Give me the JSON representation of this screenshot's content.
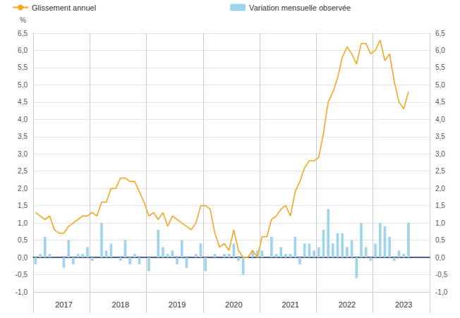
{
  "chart_data": {
    "type": "bar",
    "y_label": "%",
    "legend": "top",
    "grid": true,
    "categories": [
      null,
      null,
      null,
      null,
      null,
      null,
      "2017",
      null,
      null,
      null,
      null,
      null,
      null,
      null,
      null,
      null,
      null,
      null,
      "2018",
      null,
      null,
      null,
      null,
      null,
      null,
      null,
      null,
      null,
      null,
      null,
      "2019",
      null,
      null,
      null,
      null,
      null,
      null,
      null,
      null,
      null,
      null,
      null,
      "2020",
      null,
      null,
      null,
      null,
      null,
      null,
      null,
      null,
      null,
      null,
      null,
      "2021",
      null,
      null,
      null,
      null,
      null,
      null,
      null,
      null,
      null,
      null,
      null,
      "2022",
      null,
      null,
      null,
      null,
      null,
      null,
      null,
      null,
      null,
      null,
      null,
      "2023",
      null,
      null,
      null,
      null,
      null
    ],
    "series": [
      {
        "name": "Glissement annuel",
        "type": "line",
        "color": "#f5a623",
        "values": [
          1.3,
          1.2,
          1.1,
          1.2,
          0.8,
          0.7,
          0.7,
          0.9,
          1.0,
          1.1,
          1.2,
          1.2,
          1.3,
          1.2,
          1.6,
          1.6,
          2.0,
          2.0,
          2.3,
          2.3,
          2.2,
          2.2,
          1.9,
          1.6,
          1.2,
          1.3,
          1.1,
          1.3,
          0.9,
          1.2,
          1.1,
          1.0,
          0.9,
          0.8,
          1.0,
          1.5,
          1.5,
          1.4,
          0.7,
          0.3,
          0.4,
          0.2,
          0.8,
          0.2,
          0,
          0,
          0.2,
          0,
          0.6,
          0.6,
          1.1,
          1.2,
          1.4,
          1.5,
          1.2,
          1.9,
          2.2,
          2.6,
          2.8,
          2.8,
          2.9,
          3.6,
          4.5,
          4.8,
          5.2,
          5.8,
          6.1,
          5.9,
          5.6,
          6.2,
          6.2,
          5.9,
          6.0,
          6.3,
          5.7,
          5.9,
          5.1,
          4.5,
          4.3,
          4.8,
          null,
          null,
          null,
          null
        ]
      },
      {
        "name": "Variation mensuelle observée",
        "type": "bar",
        "color": "#9fd5ec",
        "values": [
          -0.2,
          0.1,
          0.6,
          0.1,
          0,
          0,
          -0.3,
          0.5,
          -0.2,
          0.1,
          0.1,
          0.3,
          -0.1,
          0,
          1.0,
          0.2,
          0.4,
          0,
          -0.1,
          0.5,
          -0.2,
          0.1,
          -0.2,
          0,
          -0.4,
          0,
          0.8,
          0.3,
          0.1,
          0.2,
          -0.2,
          0.5,
          -0.3,
          0,
          0.1,
          0.4,
          -0.4,
          0,
          0.1,
          0,
          0.1,
          0.1,
          0.4,
          -0.1,
          -0.5,
          0,
          0.2,
          0.2,
          0.2,
          0,
          0.6,
          0.1,
          0.3,
          0.1,
          0.1,
          0.6,
          -0.2,
          0.4,
          0.4,
          0.2,
          0.3,
          0.8,
          1.4,
          0.4,
          0.7,
          0.7,
          0.3,
          0.5,
          -0.6,
          1.0,
          0.3,
          -0.1,
          0.4,
          1.0,
          0.9,
          0.6,
          -0.1,
          0.2,
          0.1,
          1.0,
          null,
          null,
          null,
          null
        ]
      }
    ],
    "ylim": [
      -1,
      6.5
    ],
    "yticks": [
      {
        "value": -1,
        "label": "-1,0"
      },
      {
        "value": -0.5,
        "label": "-0,5"
      },
      {
        "value": 0,
        "label": "0,0"
      },
      {
        "value": 0.5,
        "label": "0,5"
      },
      {
        "value": 1,
        "label": "1,0"
      },
      {
        "value": 1.5,
        "label": "1,5"
      },
      {
        "value": 2,
        "label": "2,0"
      },
      {
        "value": 2.5,
        "label": "2,5"
      },
      {
        "value": 3,
        "label": "3,0"
      },
      {
        "value": 3.5,
        "label": "3,5"
      },
      {
        "value": 4,
        "label": "4,0"
      },
      {
        "value": 4.5,
        "label": "4,5"
      },
      {
        "value": 5,
        "label": "5,0"
      },
      {
        "value": 5.5,
        "label": "5,5"
      },
      {
        "value": 6,
        "label": "6,0"
      },
      {
        "value": 6.5,
        "label": "6,5"
      }
    ],
    "y2lim": [
      -1,
      6.5
    ],
    "y2ticks": [
      {
        "value": -1,
        "label": "-1,0"
      },
      {
        "value": -0.5,
        "label": "-0,5"
      },
      {
        "value": 0,
        "label": "0,0"
      },
      {
        "value": 0.5,
        "label": "0,5"
      },
      {
        "value": 1,
        "label": "1,0"
      },
      {
        "value": 1.5,
        "label": "1,5"
      },
      {
        "value": 2,
        "label": "2,0"
      },
      {
        "value": 2.5,
        "label": "2,5"
      },
      {
        "value": 3,
        "label": "3,0"
      },
      {
        "value": 3.5,
        "label": "3,5"
      },
      {
        "value": 4,
        "label": "4,0"
      },
      {
        "value": 4.5,
        "label": "4,5"
      },
      {
        "value": 5,
        "label": "5,0"
      },
      {
        "value": 5.5,
        "label": "5,5"
      },
      {
        "value": 6,
        "label": "6,0"
      },
      {
        "value": 6.5,
        "label": "6,5"
      }
    ]
  }
}
